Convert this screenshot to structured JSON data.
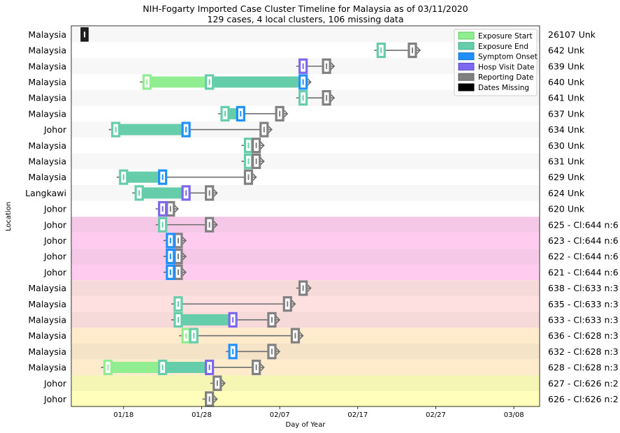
{
  "chart_data": {
    "type": "timeline",
    "title": "NIH-Fogarty Imported Case Cluster Timeline for Malaysia as of 03/11/2020",
    "subtitle": "129 cases, 4 local clusters, 106 missing data",
    "xlabel": "Day of Year",
    "ylabel": "Location",
    "x_ticks": [
      {
        "day": 18,
        "label": "01/18"
      },
      {
        "day": 28,
        "label": "01/28"
      },
      {
        "day": 38,
        "label": "02/07"
      },
      {
        "day": 48,
        "label": "02/17"
      },
      {
        "day": 58,
        "label": "02/27"
      },
      {
        "day": 68,
        "label": "03/08"
      }
    ],
    "xlim": [
      11.3,
      71.3
    ],
    "grid": false,
    "legend_position": "top-right",
    "legend": [
      {
        "key": "exposure_start",
        "label": "Exposure Start",
        "color": "#90ee90",
        "edge": "#5ccc5c"
      },
      {
        "key": "exposure_end",
        "label": "Exposure End",
        "color": "#66cdaa",
        "edge": "#3fae8a"
      },
      {
        "key": "symptom_onset",
        "label": "Symptom Onset",
        "color": "#1e90ff",
        "edge": "#1873cc"
      },
      {
        "key": "hosp_visit",
        "label": "Hosp Visit Date",
        "color": "#7b68ee",
        "edge": "#5c4dc0"
      },
      {
        "key": "reporting",
        "label": "Reporting Date",
        "color": "#808080",
        "edge": "#606060"
      },
      {
        "key": "missing",
        "label": "Dates Missing",
        "color": "#000000",
        "edge": "#000000"
      }
    ],
    "rows": [
      {
        "location": "Malaysia",
        "case": "26107 Unk",
        "bg": "#f7f7f7",
        "missing": 13.0
      },
      {
        "location": "Malaysia",
        "case": "642 Unk",
        "bg": "#ffffff",
        "exp_end": 51.0,
        "report": 55.0
      },
      {
        "location": "Malaysia",
        "case": "639 Unk",
        "bg": "#f7f7f7",
        "hosp": 41.0,
        "report": 44.0
      },
      {
        "location": "Malaysia",
        "case": "640 Unk",
        "bg": "#ffffff",
        "exp_start": 21.0,
        "exp_end": 29.0,
        "symptom": 41.0
      },
      {
        "location": "Malaysia",
        "case": "641 Unk",
        "bg": "#f7f7f7",
        "exp_end": 41.0,
        "report": 44.0
      },
      {
        "location": "Malaysia",
        "case": "637 Unk",
        "bg": "#ffffff",
        "exp_end": 31.0,
        "symptom": 33.0,
        "report": 38.0
      },
      {
        "location": "Johor",
        "case": "634 Unk",
        "bg": "#f7f7f7",
        "exp_end": 17.0,
        "symptom": 26.0,
        "report": 36.0
      },
      {
        "location": "Malaysia",
        "case": "630 Unk",
        "bg": "#ffffff",
        "exp_end": 34.0,
        "report": 35.0
      },
      {
        "location": "Malaysia",
        "case": "631 Unk",
        "bg": "#f7f7f7",
        "exp_end": 34.0,
        "report": 35.0
      },
      {
        "location": "Malaysia",
        "case": "629 Unk",
        "bg": "#ffffff",
        "exp_end": 18.0,
        "symptom": 23.0,
        "report": 34.0
      },
      {
        "location": "Langkawi",
        "case": "624 Unk",
        "bg": "#f7f7f7",
        "exp_end": 20.0,
        "hosp": 26.0,
        "report": 29.0
      },
      {
        "location": "Johor",
        "case": "620 Unk",
        "bg": "#ffffff",
        "hosp": 23.0,
        "report": 24.0
      },
      {
        "location": "Johor",
        "case": "625 - Cl:644 n:6",
        "bg": "#f5c8e7",
        "exp_end": 23.0,
        "report": 29.0
      },
      {
        "location": "Johor",
        "case": "623 - Cl:644 n:6",
        "bg": "#ffccf0",
        "symptom": 24.0,
        "report": 25.0
      },
      {
        "location": "Johor",
        "case": "622 - Cl:644 n:6",
        "bg": "#f5c8e7",
        "symptom": 24.0,
        "report": 25.0
      },
      {
        "location": "Johor",
        "case": "621 - Cl:644 n:6",
        "bg": "#ffccf0",
        "symptom": 24.0,
        "report": 25.0
      },
      {
        "location": "Malaysia",
        "case": "638 - Cl:633 n:3",
        "bg": "#f6d9d9",
        "report": 41.0
      },
      {
        "location": "Malaysia",
        "case": "635 - Cl:633 n:3",
        "bg": "#ffe0e0",
        "exp_end": 25.0,
        "report": 39.0
      },
      {
        "location": "Malaysia",
        "case": "633 - Cl:633 n:3",
        "bg": "#f6d9d9",
        "exp_end": 25.0,
        "hosp": 32.0,
        "report": 37.0
      },
      {
        "location": "Malaysia",
        "case": "636 - Cl:628 n:3",
        "bg": "#fdebcc",
        "exp_start": 26.0,
        "exp_end": 27.0,
        "report": 40.0
      },
      {
        "location": "Malaysia",
        "case": "632 - Cl:628 n:3",
        "bg": "#f5e3c7",
        "symptom": 32.0,
        "report": 37.0
      },
      {
        "location": "Malaysia",
        "case": "628 - Cl:628 n:3",
        "bg": "#fdebcc",
        "exp_start": 16.0,
        "exp_end": 23.0,
        "hosp": 29.0,
        "report": 35.0
      },
      {
        "location": "Johor",
        "case": "627 - Cl:626 n:2",
        "bg": "#f5f5b4",
        "report": 30.0
      },
      {
        "location": "Johor",
        "case": "626 - Cl:626 n:2",
        "bg": "#ffffbb",
        "report": 29.0
      }
    ]
  }
}
